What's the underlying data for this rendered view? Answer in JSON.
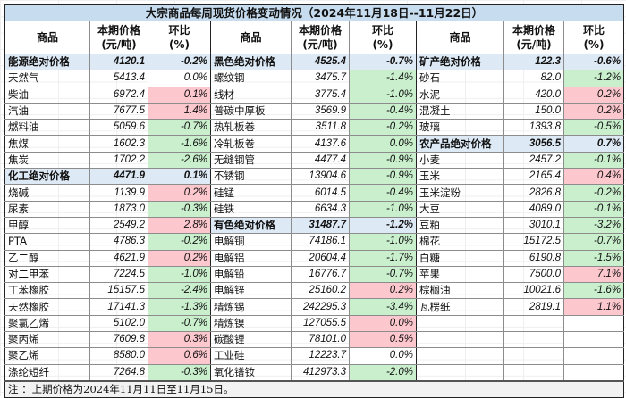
{
  "title": "大宗商品每周现货价格变动情况（2024年11月18日--11月22日）",
  "headers": {
    "commodity": "商品",
    "price_line1": "本期价格",
    "price_line2": "(元/吨)",
    "change_line1": "环比",
    "change_line2": "(%)"
  },
  "colors": {
    "title_bg": "#c7dcef",
    "group_bg": "#dde9f5",
    "up_bg": "#fdc7ce",
    "up_text": "#b4102b",
    "down_bg": "#c9efcd",
    "down_text": "#1f6e1c"
  },
  "columns": [
    {
      "rows": [
        {
          "name": "能源绝对价格",
          "price": "4120.1",
          "change": "-0.2%",
          "type": "group",
          "trend": "flat"
        },
        {
          "name": "天然气",
          "price": "5413.4",
          "change": "0.0%",
          "type": "item",
          "trend": "flat"
        },
        {
          "name": "柴油",
          "price": "6972.4",
          "change": "0.1%",
          "type": "item",
          "trend": "up"
        },
        {
          "name": "汽油",
          "price": "7677.5",
          "change": "1.4%",
          "type": "item",
          "trend": "up"
        },
        {
          "name": "燃料油",
          "price": "5059.6",
          "change": "-0.7%",
          "type": "item",
          "trend": "down"
        },
        {
          "name": "焦煤",
          "price": "1602.3",
          "change": "-1.6%",
          "type": "item",
          "trend": "down"
        },
        {
          "name": "焦炭",
          "price": "1702.2",
          "change": "-2.6%",
          "type": "item",
          "trend": "down"
        },
        {
          "name": "化工绝对价格",
          "price": "4471.9",
          "change": "0.1%",
          "type": "group",
          "trend": "flat"
        },
        {
          "name": "烧碱",
          "price": "1139.9",
          "change": "0.2%",
          "type": "item",
          "trend": "up"
        },
        {
          "name": "尿素",
          "price": "1873.0",
          "change": "-0.3%",
          "type": "item",
          "trend": "down"
        },
        {
          "name": "甲醇",
          "price": "2549.2",
          "change": "2.8%",
          "type": "item",
          "trend": "up"
        },
        {
          "name": "PTA",
          "price": "4786.3",
          "change": "-0.2%",
          "type": "item",
          "trend": "down"
        },
        {
          "name": "乙二醇",
          "price": "4621.9",
          "change": "0.2%",
          "type": "item",
          "trend": "up"
        },
        {
          "name": "对二甲苯",
          "price": "7224.5",
          "change": "-1.0%",
          "type": "item",
          "trend": "down"
        },
        {
          "name": "丁苯橡胶",
          "price": "15157.5",
          "change": "-2.4%",
          "type": "item",
          "trend": "down"
        },
        {
          "name": "天然橡胶",
          "price": "17141.3",
          "change": "-1.3%",
          "type": "item",
          "trend": "down"
        },
        {
          "name": "聚氯乙烯",
          "price": "5102.0",
          "change": "-0.7%",
          "type": "item",
          "trend": "down"
        },
        {
          "name": "聚丙烯",
          "price": "7609.8",
          "change": "0.3%",
          "type": "item",
          "trend": "up"
        },
        {
          "name": "聚乙烯",
          "price": "8580.0",
          "change": "0.6%",
          "type": "item",
          "trend": "up"
        },
        {
          "name": "涤纶短纤",
          "price": "7264.8",
          "change": "-0.3%",
          "type": "item",
          "trend": "down"
        }
      ]
    },
    {
      "rows": [
        {
          "name": "黑色绝对价格",
          "price": "4525.4",
          "change": "-0.7%",
          "type": "group",
          "trend": "flat"
        },
        {
          "name": "螺纹钢",
          "price": "3475.7",
          "change": "-1.4%",
          "type": "item",
          "trend": "down"
        },
        {
          "name": "线材",
          "price": "3775.4",
          "change": "-1.0%",
          "type": "item",
          "trend": "down"
        },
        {
          "name": "普碳中厚板",
          "price": "3569.9",
          "change": "-0.4%",
          "type": "item",
          "trend": "down"
        },
        {
          "name": "热轧板卷",
          "price": "3511.8",
          "change": "-0.2%",
          "type": "item",
          "trend": "down"
        },
        {
          "name": "冷轧板卷",
          "price": "4137.6",
          "change": "0.0%",
          "type": "item",
          "trend": "down"
        },
        {
          "name": "无缝钢管",
          "price": "4477.4",
          "change": "-0.9%",
          "type": "item",
          "trend": "down"
        },
        {
          "name": "不锈钢",
          "price": "13904.6",
          "change": "-0.9%",
          "type": "item",
          "trend": "down"
        },
        {
          "name": "硅锰",
          "price": "6014.5",
          "change": "-0.4%",
          "type": "item",
          "trend": "down"
        },
        {
          "name": "硅铁",
          "price": "6634.3",
          "change": "-1.0%",
          "type": "item",
          "trend": "down"
        },
        {
          "name": "有色绝对价格",
          "price": "31487.7",
          "change": "-1.2%",
          "type": "group",
          "trend": "flat"
        },
        {
          "name": "电解铜",
          "price": "74186.1",
          "change": "-1.0%",
          "type": "item",
          "trend": "down"
        },
        {
          "name": "电解铝",
          "price": "20604.4",
          "change": "-1.7%",
          "type": "item",
          "trend": "down"
        },
        {
          "name": "电解铅",
          "price": "16776.7",
          "change": "-0.7%",
          "type": "item",
          "trend": "down"
        },
        {
          "name": "电解锌",
          "price": "25160.2",
          "change": "0.2%",
          "type": "item",
          "trend": "up"
        },
        {
          "name": "精炼锡",
          "price": "242295.3",
          "change": "-3.4%",
          "type": "item",
          "trend": "down"
        },
        {
          "name": "精炼镍",
          "price": "127055.5",
          "change": "0.0%",
          "type": "item",
          "trend": "up"
        },
        {
          "name": "碳酸锂",
          "price": "78101.0",
          "change": "0.5%",
          "type": "item",
          "trend": "up"
        },
        {
          "name": "工业硅",
          "price": "12223.7",
          "change": "0.0%",
          "type": "item",
          "trend": "flat"
        },
        {
          "name": "氧化镨钕",
          "price": "412973.3",
          "change": "-2.0%",
          "type": "item",
          "trend": "down"
        }
      ]
    },
    {
      "rows": [
        {
          "name": "矿产绝对价格",
          "price": "122.3",
          "change": "-0.6%",
          "type": "group",
          "trend": "flat"
        },
        {
          "name": "砂石",
          "price": "82.0",
          "change": "-1.2%",
          "type": "item",
          "trend": "down"
        },
        {
          "name": "水泥",
          "price": "420.0",
          "change": "0.2%",
          "type": "item",
          "trend": "up"
        },
        {
          "name": "混凝土",
          "price": "150.0",
          "change": "0.2%",
          "type": "item",
          "trend": "up"
        },
        {
          "name": "玻璃",
          "price": "1393.8",
          "change": "-0.5%",
          "type": "item",
          "trend": "down"
        },
        {
          "name": "农产品绝对价格",
          "price": "3056.5",
          "change": "0.7%",
          "type": "group",
          "trend": "flat"
        },
        {
          "name": "小麦",
          "price": "2457.2",
          "change": "-0.1%",
          "type": "item",
          "trend": "down"
        },
        {
          "name": "玉米",
          "price": "2165.4",
          "change": "0.4%",
          "type": "item",
          "trend": "up"
        },
        {
          "name": "玉米淀粉",
          "price": "2826.8",
          "change": "-0.2%",
          "type": "item",
          "trend": "down"
        },
        {
          "name": "大豆",
          "price": "4089.0",
          "change": "-0.1%",
          "type": "item",
          "trend": "down"
        },
        {
          "name": "豆粕",
          "price": "3010.1",
          "change": "-3.2%",
          "type": "item",
          "trend": "down"
        },
        {
          "name": "棉花",
          "price": "15172.5",
          "change": "-0.7%",
          "type": "item",
          "trend": "down"
        },
        {
          "name": "白糖",
          "price": "6190.8",
          "change": "-1.5%",
          "type": "item",
          "trend": "down"
        },
        {
          "name": "苹果",
          "price": "7500.0",
          "change": "7.1%",
          "type": "item",
          "trend": "up"
        },
        {
          "name": "棕榈油",
          "price": "10021.6",
          "change": "-1.6%",
          "type": "item",
          "trend": "down"
        },
        {
          "name": "瓦楞纸",
          "price": "2819.1",
          "change": "1.1%",
          "type": "item",
          "trend": "up"
        },
        {
          "name": "",
          "price": "",
          "change": "",
          "type": "empty",
          "trend": "none"
        },
        {
          "name": "",
          "price": "",
          "change": "",
          "type": "empty",
          "trend": "none"
        },
        {
          "name": "",
          "price": "",
          "change": "",
          "type": "empty",
          "trend": "none"
        },
        {
          "name": "",
          "price": "",
          "change": "",
          "type": "empty",
          "trend": "none"
        }
      ]
    }
  ],
  "note": "注  ：上期价格为2024年11月11日至11月15日。"
}
